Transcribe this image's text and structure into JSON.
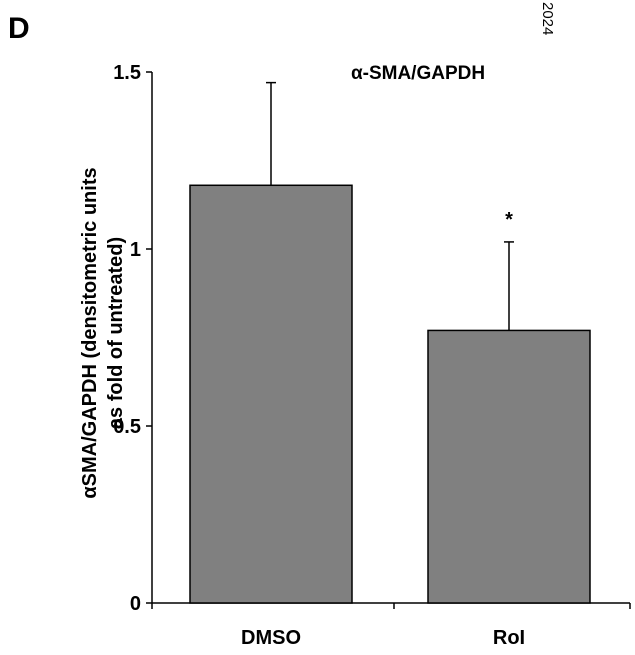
{
  "panel_label": "D",
  "edge_text": "2024",
  "chart_data": {
    "type": "bar",
    "title": "α-SMA/GAPDH",
    "ylabel_lines": [
      "αSMA/GAPDH (densitometric units",
      "as fold of untreated)"
    ],
    "xlabel": "",
    "categories": [
      "DMSO",
      "RoI"
    ],
    "values": [
      1.18,
      0.77
    ],
    "error_upper": [
      1.47,
      1.02
    ],
    "significance": [
      "",
      "*"
    ],
    "ylim": [
      0,
      1.5
    ],
    "yticks": [
      0,
      0.5,
      1,
      1.5
    ],
    "ytick_labels": [
      "0",
      "0.5",
      "1",
      "1.5"
    ],
    "grid": false,
    "legend": "none",
    "colors": {
      "bar_fill": "#808080",
      "bar_stroke": "#000000",
      "axis": "#000000"
    }
  }
}
